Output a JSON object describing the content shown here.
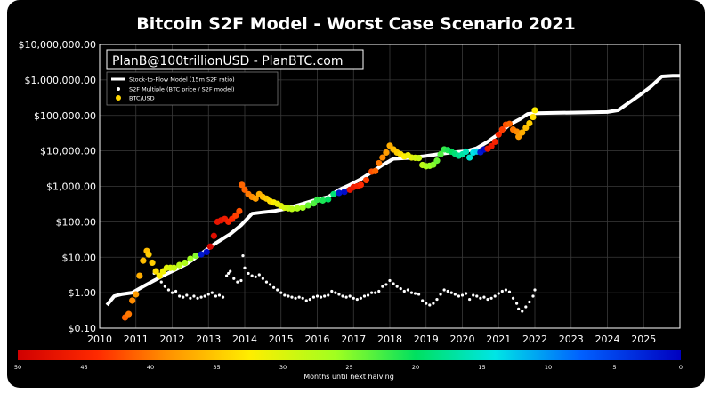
{
  "chart_data": {
    "type": "scatter",
    "title": "Bitcoin S2F Model - Worst Case Scenario 2021",
    "y_scale": "log",
    "y_ticks": [
      "$0.10",
      "$1.00",
      "$10.00",
      "$100.00",
      "$1,000.00",
      "$10,000.00",
      "$100,000.00",
      "$1,000,000.00",
      "$10,000,000.00"
    ],
    "x_ticks": [
      "2010",
      "2011",
      "2012",
      "2013",
      "2014",
      "2015",
      "2016",
      "2017",
      "2018",
      "2019",
      "2020",
      "2021",
      "2022",
      "2023",
      "2024",
      "2025"
    ],
    "xlim": [
      2010,
      2026
    ],
    "ylim": [
      0.1,
      10000000
    ],
    "grid": true,
    "watermark": "PlanB@100trillionUSD - PlanBTC.com",
    "legend": {
      "placement": "top-left",
      "entries": [
        {
          "label": "Stock-to-Flow Model (15m S2F ratio)",
          "color": "#ffffff",
          "marker": "line"
        },
        {
          "label": "S2F Multiple (BTC price / S2F model)",
          "color": "#ffffff",
          "marker": "dot"
        },
        {
          "label": "BTC/USD",
          "color": "#ffd700",
          "marker": "dot"
        }
      ]
    },
    "colorbar": {
      "label": "Months until next halving",
      "ticks": [
        "50",
        "45",
        "40",
        "35",
        "30",
        "25",
        "20",
        "15",
        "10",
        "5",
        "0"
      ],
      "range": [
        50,
        0
      ]
    },
    "s2f_model": [
      [
        2010.2,
        0.45
      ],
      [
        2010.4,
        0.8
      ],
      [
        2010.6,
        0.9
      ],
      [
        2010.9,
        1.0
      ],
      [
        2011.2,
        1.5
      ],
      [
        2011.5,
        2.2
      ],
      [
        2011.8,
        3.2
      ],
      [
        2012.1,
        4.5
      ],
      [
        2012.4,
        6.5
      ],
      [
        2012.6,
        9
      ],
      [
        2012.9,
        15
      ],
      [
        2013.2,
        25
      ],
      [
        2013.6,
        45
      ],
      [
        2013.9,
        80
      ],
      [
        2014.2,
        170
      ],
      [
        2014.5,
        185
      ],
      [
        2014.8,
        200
      ],
      [
        2015.1,
        230
      ],
      [
        2015.5,
        300
      ],
      [
        2015.9,
        400
      ],
      [
        2016.3,
        500
      ],
      [
        2016.6,
        800
      ],
      [
        2016.9,
        1100
      ],
      [
        2017.2,
        1600
      ],
      [
        2017.5,
        2500
      ],
      [
        2017.8,
        4000
      ],
      [
        2018.1,
        6000
      ],
      [
        2018.5,
        6300
      ],
      [
        2018.9,
        7000
      ],
      [
        2019.3,
        8000
      ],
      [
        2019.7,
        9000
      ],
      [
        2020.1,
        9800
      ],
      [
        2020.4,
        12000
      ],
      [
        2020.7,
        18000
      ],
      [
        2021.0,
        30000
      ],
      [
        2021.3,
        55000
      ],
      [
        2021.6,
        80000
      ],
      [
        2021.8,
        110000
      ],
      [
        2022.0,
        115000
      ],
      [
        2022.5,
        118000
      ],
      [
        2023.0,
        120000
      ],
      [
        2023.5,
        122000
      ],
      [
        2024.0,
        125000
      ],
      [
        2024.3,
        140000
      ],
      [
        2024.6,
        230000
      ],
      [
        2024.9,
        380000
      ],
      [
        2025.2,
        650000
      ],
      [
        2025.5,
        1250000
      ],
      [
        2025.8,
        1300000
      ],
      [
        2026.0,
        1300000
      ]
    ],
    "btc_usd": [
      [
        2010.7,
        0.2,
        41
      ],
      [
        2010.8,
        0.25,
        40
      ],
      [
        2010.9,
        0.6,
        39
      ],
      [
        2011.0,
        0.9,
        38
      ],
      [
        2011.1,
        3,
        37
      ],
      [
        2011.2,
        8,
        36
      ],
      [
        2011.3,
        15,
        36
      ],
      [
        2011.35,
        12,
        35
      ],
      [
        2011.45,
        7,
        35
      ],
      [
        2011.55,
        4,
        34
      ],
      [
        2011.65,
        3,
        33
      ],
      [
        2011.75,
        4,
        32
      ],
      [
        2011.85,
        5,
        31
      ],
      [
        2011.95,
        5,
        30
      ],
      [
        2012.05,
        5,
        29
      ],
      [
        2012.2,
        6,
        28
      ],
      [
        2012.35,
        7,
        27
      ],
      [
        2012.5,
        9,
        26
      ],
      [
        2012.65,
        11,
        25
      ],
      [
        2012.8,
        12,
        2
      ],
      [
        2012.95,
        14,
        1
      ],
      [
        2013.05,
        20,
        49
      ],
      [
        2013.15,
        40,
        48
      ],
      [
        2013.25,
        100,
        47
      ],
      [
        2013.35,
        110,
        47
      ],
      [
        2013.45,
        120,
        46
      ],
      [
        2013.55,
        100,
        45
      ],
      [
        2013.65,
        120,
        44
      ],
      [
        2013.75,
        150,
        43
      ],
      [
        2013.85,
        200,
        42
      ],
      [
        2013.92,
        1100,
        41
      ],
      [
        2014.0,
        800,
        41
      ],
      [
        2014.1,
        600,
        40
      ],
      [
        2014.2,
        500,
        39
      ],
      [
        2014.3,
        450,
        38
      ],
      [
        2014.4,
        600,
        37
      ],
      [
        2014.5,
        500,
        36
      ],
      [
        2014.6,
        450,
        35
      ],
      [
        2014.7,
        380,
        34
      ],
      [
        2014.8,
        350,
        33
      ],
      [
        2014.9,
        320,
        32
      ],
      [
        2015.0,
        280,
        31
      ],
      [
        2015.1,
        250,
        30
      ],
      [
        2015.2,
        240,
        29
      ],
      [
        2015.3,
        230,
        28
      ],
      [
        2015.45,
        240,
        27
      ],
      [
        2015.6,
        250,
        26
      ],
      [
        2015.75,
        290,
        24
      ],
      [
        2015.9,
        330,
        23
      ],
      [
        2016.0,
        420,
        22
      ],
      [
        2016.15,
        400,
        21
      ],
      [
        2016.3,
        430,
        20
      ],
      [
        2016.45,
        600,
        19
      ],
      [
        2016.6,
        650,
        2
      ],
      [
        2016.75,
        700,
        1
      ],
      [
        2016.9,
        800,
        47
      ],
      [
        2017.0,
        950,
        46
      ],
      [
        2017.1,
        1000,
        45
      ],
      [
        2017.2,
        1100,
        44
      ],
      [
        2017.35,
        1500,
        43
      ],
      [
        2017.5,
        2600,
        42
      ],
      [
        2017.6,
        2700,
        41
      ],
      [
        2017.7,
        4500,
        40
      ],
      [
        2017.8,
        6500,
        39
      ],
      [
        2017.9,
        9000,
        38
      ],
      [
        2018.0,
        14000,
        37
      ],
      [
        2018.1,
        11000,
        36
      ],
      [
        2018.2,
        9000,
        35
      ],
      [
        2018.3,
        8000,
        34
      ],
      [
        2018.4,
        7000,
        33
      ],
      [
        2018.5,
        7500,
        32
      ],
      [
        2018.6,
        6500,
        31
      ],
      [
        2018.7,
        6400,
        30
      ],
      [
        2018.8,
        6300,
        29
      ],
      [
        2018.9,
        4000,
        28
      ],
      [
        2019.0,
        3700,
        27
      ],
      [
        2019.1,
        3800,
        26
      ],
      [
        2019.2,
        4100,
        25
      ],
      [
        2019.3,
        5300,
        24
      ],
      [
        2019.4,
        8000,
        23
      ],
      [
        2019.5,
        11000,
        22
      ],
      [
        2019.6,
        10500,
        21
      ],
      [
        2019.7,
        9500,
        20
      ],
      [
        2019.8,
        8300,
        19
      ],
      [
        2019.9,
        7300,
        18
      ],
      [
        2020.0,
        8000,
        17
      ],
      [
        2020.1,
        9500,
        16
      ],
      [
        2020.2,
        6500,
        15
      ],
      [
        2020.3,
        9000,
        14
      ],
      [
        2020.4,
        9600,
        13
      ],
      [
        2020.5,
        9200,
        2
      ],
      [
        2020.6,
        11000,
        1
      ],
      [
        2020.7,
        11500,
        47
      ],
      [
        2020.8,
        13500,
        46
      ],
      [
        2020.9,
        18000,
        45
      ],
      [
        2021.0,
        29000,
        44
      ],
      [
        2021.1,
        40000,
        43
      ],
      [
        2021.2,
        55000,
        42
      ],
      [
        2021.3,
        58000,
        41
      ],
      [
        2021.4,
        40000,
        40
      ],
      [
        2021.5,
        35000,
        39
      ],
      [
        2021.55,
        25000,
        38
      ],
      [
        2021.65,
        33000,
        37
      ],
      [
        2021.75,
        45000,
        36
      ],
      [
        2021.85,
        60000,
        35
      ],
      [
        2021.95,
        90000,
        34
      ],
      [
        2022.0,
        140000,
        33
      ]
    ],
    "s2f_multiple": [
      [
        2011.5,
        3.5
      ],
      [
        2011.6,
        2.5
      ],
      [
        2011.7,
        2.0
      ],
      [
        2011.8,
        1.5
      ],
      [
        2011.9,
        1.2
      ],
      [
        2012.0,
        1.0
      ],
      [
        2012.1,
        1.1
      ],
      [
        2012.2,
        0.8
      ],
      [
        2012.3,
        0.75
      ],
      [
        2012.4,
        0.85
      ],
      [
        2012.5,
        0.7
      ],
      [
        2012.6,
        0.8
      ],
      [
        2012.7,
        0.7
      ],
      [
        2012.8,
        0.75
      ],
      [
        2012.9,
        0.8
      ],
      [
        2013.0,
        0.9
      ],
      [
        2013.1,
        1.0
      ],
      [
        2013.2,
        0.8
      ],
      [
        2013.3,
        0.85
      ],
      [
        2013.4,
        0.75
      ],
      [
        2013.5,
        3.0
      ],
      [
        2013.55,
        3.5
      ],
      [
        2013.6,
        4.0
      ],
      [
        2013.7,
        2.5
      ],
      [
        2013.8,
        2.0
      ],
      [
        2013.9,
        2.2
      ],
      [
        2013.95,
        11
      ],
      [
        2014.0,
        5
      ],
      [
        2014.1,
        3.5
      ],
      [
        2014.2,
        3
      ],
      [
        2014.3,
        2.8
      ],
      [
        2014.4,
        3.2
      ],
      [
        2014.5,
        2.5
      ],
      [
        2014.6,
        2.0
      ],
      [
        2014.7,
        1.7
      ],
      [
        2014.8,
        1.4
      ],
      [
        2014.9,
        1.2
      ],
      [
        2015.0,
        1.0
      ],
      [
        2015.1,
        0.85
      ],
      [
        2015.2,
        0.8
      ],
      [
        2015.3,
        0.75
      ],
      [
        2015.4,
        0.7
      ],
      [
        2015.5,
        0.75
      ],
      [
        2015.6,
        0.7
      ],
      [
        2015.7,
        0.6
      ],
      [
        2015.8,
        0.65
      ],
      [
        2015.9,
        0.75
      ],
      [
        2016.0,
        0.8
      ],
      [
        2016.1,
        0.75
      ],
      [
        2016.2,
        0.8
      ],
      [
        2016.3,
        0.85
      ],
      [
        2016.4,
        1.1
      ],
      [
        2016.5,
        1.0
      ],
      [
        2016.6,
        0.9
      ],
      [
        2016.7,
        0.8
      ],
      [
        2016.8,
        0.75
      ],
      [
        2016.9,
        0.8
      ],
      [
        2017.0,
        0.7
      ],
      [
        2017.1,
        0.65
      ],
      [
        2017.2,
        0.7
      ],
      [
        2017.3,
        0.8
      ],
      [
        2017.4,
        0.85
      ],
      [
        2017.5,
        1.0
      ],
      [
        2017.6,
        1.0
      ],
      [
        2017.7,
        1.1
      ],
      [
        2017.8,
        1.5
      ],
      [
        2017.9,
        1.7
      ],
      [
        2018.0,
        2.2
      ],
      [
        2018.1,
        1.8
      ],
      [
        2018.2,
        1.5
      ],
      [
        2018.3,
        1.3
      ],
      [
        2018.4,
        1.1
      ],
      [
        2018.5,
        1.2
      ],
      [
        2018.6,
        1.0
      ],
      [
        2018.7,
        0.95
      ],
      [
        2018.8,
        0.9
      ],
      [
        2018.9,
        0.6
      ],
      [
        2019.0,
        0.5
      ],
      [
        2019.1,
        0.45
      ],
      [
        2019.2,
        0.5
      ],
      [
        2019.3,
        0.65
      ],
      [
        2019.4,
        0.9
      ],
      [
        2019.5,
        1.2
      ],
      [
        2019.6,
        1.1
      ],
      [
        2019.7,
        1.0
      ],
      [
        2019.8,
        0.9
      ],
      [
        2019.9,
        0.8
      ],
      [
        2020.0,
        0.85
      ],
      [
        2020.1,
        0.95
      ],
      [
        2020.2,
        0.65
      ],
      [
        2020.3,
        0.85
      ],
      [
        2020.4,
        0.8
      ],
      [
        2020.5,
        0.7
      ],
      [
        2020.6,
        0.75
      ],
      [
        2020.7,
        0.65
      ],
      [
        2020.8,
        0.7
      ],
      [
        2020.9,
        0.8
      ],
      [
        2021.0,
        0.95
      ],
      [
        2021.1,
        1.1
      ],
      [
        2021.2,
        1.2
      ],
      [
        2021.3,
        1.05
      ],
      [
        2021.4,
        0.7
      ],
      [
        2021.5,
        0.5
      ],
      [
        2021.55,
        0.35
      ],
      [
        2021.65,
        0.3
      ],
      [
        2021.75,
        0.4
      ],
      [
        2021.85,
        0.55
      ],
      [
        2021.95,
        0.8
      ],
      [
        2022.0,
        1.2
      ]
    ]
  }
}
